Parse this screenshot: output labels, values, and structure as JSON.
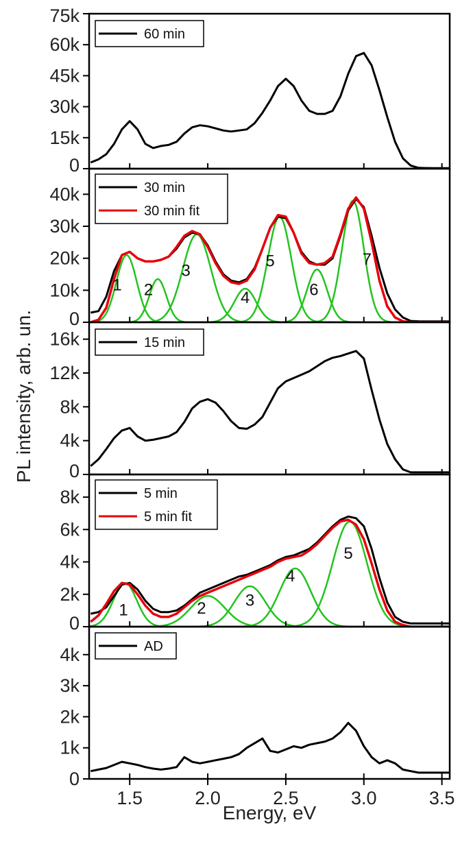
{
  "colors": {
    "data": "#000000",
    "fit": "#e8000b",
    "component": "#22c41e",
    "axis": "#000000"
  },
  "chart_data": {
    "type": "line",
    "xlabel": "Energy, eV",
    "ylabel": "PL intensity, arb. un.",
    "xlim": [
      1.24,
      3.55
    ],
    "xticks": [
      1.5,
      2.0,
      2.5,
      3.0,
      3.5
    ],
    "xtick_labels": [
      "1.5",
      "2.0",
      "2.5",
      "3.0",
      "3.5"
    ],
    "panels": [
      {
        "id": "60min",
        "ylim": [
          0,
          75000
        ],
        "yticks": [
          0,
          15000,
          30000,
          45000,
          60000,
          75000
        ],
        "ytick_labels": [
          "0",
          "15k",
          "30k",
          "45k",
          "60k",
          "75k"
        ],
        "series": [
          {
            "name": "60 min",
            "role": "data",
            "x": [
              1.25,
              1.3,
              1.35,
              1.4,
              1.45,
              1.5,
              1.55,
              1.6,
              1.65,
              1.7,
              1.75,
              1.8,
              1.85,
              1.9,
              1.95,
              2.0,
              2.05,
              2.1,
              2.15,
              2.2,
              2.25,
              2.3,
              2.35,
              2.4,
              2.45,
              2.5,
              2.55,
              2.6,
              2.65,
              2.7,
              2.75,
              2.8,
              2.85,
              2.9,
              2.95,
              3.0,
              3.05,
              3.1,
              3.15,
              3.2,
              3.25,
              3.3,
              3.35,
              3.4,
              3.45,
              3.5,
              3.55
            ],
            "y": [
              3000,
              4500,
              7000,
              12000,
              19000,
              23000,
              19000,
              12000,
              10000,
              11000,
              11500,
              13000,
              17000,
              20000,
              21000,
              20500,
              19500,
              18500,
              18000,
              18500,
              19000,
              22000,
              27000,
              33000,
              40000,
              43500,
              40000,
              33000,
              28000,
              26500,
              26500,
              28000,
              35000,
              46000,
              54500,
              56000,
              50000,
              38000,
              25000,
              13000,
              5000,
              1500,
              400,
              300,
              250,
              250,
              250
            ]
          }
        ]
      },
      {
        "id": "30min",
        "ylim": [
          0,
          48000
        ],
        "yticks": [
          0,
          10000,
          20000,
          30000,
          40000
        ],
        "ytick_labels": [
          "0",
          "10k",
          "20k",
          "30k",
          "40k"
        ],
        "series": [
          {
            "name": "30 min",
            "role": "data",
            "x": [
              1.25,
              1.3,
              1.35,
              1.4,
              1.45,
              1.5,
              1.55,
              1.6,
              1.65,
              1.7,
              1.75,
              1.8,
              1.85,
              1.9,
              1.95,
              2.0,
              2.05,
              2.1,
              2.15,
              2.2,
              2.25,
              2.3,
              2.35,
              2.4,
              2.45,
              2.5,
              2.55,
              2.6,
              2.65,
              2.7,
              2.75,
              2.8,
              2.85,
              2.9,
              2.95,
              3.0,
              3.05,
              3.1,
              3.15,
              3.2,
              3.25,
              3.3,
              3.35,
              3.4,
              3.45,
              3.5,
              3.55
            ],
            "y": [
              3000,
              3500,
              8000,
              16000,
              21000,
              22000,
              20000,
              19000,
              19000,
              19500,
              20500,
              23000,
              26500,
              28000,
              27500,
              24000,
              19000,
              15000,
              13000,
              12500,
              13500,
              17000,
              23000,
              29500,
              33000,
              32500,
              28000,
              22000,
              19000,
              18000,
              18000,
              20000,
              27000,
              35000,
              38500,
              36000,
              27000,
              17000,
              9000,
              4000,
              1500,
              400,
              300,
              250,
              250,
              250,
              250
            ]
          },
          {
            "name": "30 min fit",
            "role": "fit",
            "x": [
              1.25,
              1.3,
              1.35,
              1.4,
              1.45,
              1.5,
              1.55,
              1.6,
              1.65,
              1.7,
              1.75,
              1.8,
              1.85,
              1.9,
              1.95,
              2.0,
              2.05,
              2.1,
              2.15,
              2.2,
              2.25,
              2.3,
              2.35,
              2.4,
              2.45,
              2.5,
              2.55,
              2.6,
              2.65,
              2.7,
              2.75,
              2.8,
              2.85,
              2.9,
              2.95,
              3.0,
              3.05,
              3.1,
              3.15,
              3.2,
              3.25,
              3.3,
              3.35,
              3.4,
              3.45,
              3.5,
              3.55
            ],
            "y": [
              0,
              800,
              4500,
              13500,
              21000,
              22000,
              20000,
              19000,
              19000,
              19500,
              20500,
              23500,
              27000,
              28500,
              27500,
              23500,
              18500,
              14500,
              12500,
              12000,
              13000,
              16500,
              23000,
              29500,
              33500,
              33000,
              28000,
              21500,
              18500,
              18000,
              18500,
              20500,
              27500,
              35500,
              39000,
              35500,
              25000,
              13000,
              5000,
              1500,
              300,
              0,
              0,
              0,
              0,
              0,
              0
            ]
          },
          {
            "name": "peak 1",
            "role": "component",
            "center": 1.48,
            "amp": 21000,
            "sigma": 0.065
          },
          {
            "name": "peak 2",
            "role": "component",
            "center": 1.68,
            "amp": 13500,
            "sigma": 0.055
          },
          {
            "name": "peak 3",
            "role": "component",
            "center": 1.93,
            "amp": 27500,
            "sigma": 0.09
          },
          {
            "name": "peak 4",
            "role": "component",
            "center": 2.24,
            "amp": 10500,
            "sigma": 0.07
          },
          {
            "name": "peak 5",
            "role": "component",
            "center": 2.46,
            "amp": 33000,
            "sigma": 0.075
          },
          {
            "name": "peak 6",
            "role": "component",
            "center": 2.7,
            "amp": 16500,
            "sigma": 0.065
          },
          {
            "name": "peak 7",
            "role": "component",
            "center": 2.93,
            "amp": 38000,
            "sigma": 0.07
          }
        ],
        "peak_labels": [
          {
            "text": "1",
            "x": 1.42,
            "y": 10000
          },
          {
            "text": "2",
            "x": 1.62,
            "y": 8500
          },
          {
            "text": "3",
            "x": 1.86,
            "y": 14500
          },
          {
            "text": "4",
            "x": 2.24,
            "y": 6000
          },
          {
            "text": "5",
            "x": 2.4,
            "y": 17500
          },
          {
            "text": "6",
            "x": 2.68,
            "y": 8500
          },
          {
            "text": "7",
            "x": 3.02,
            "y": 18000
          }
        ]
      },
      {
        "id": "15min",
        "ylim": [
          0,
          18000
        ],
        "yticks": [
          0,
          4000,
          8000,
          12000,
          16000
        ],
        "ytick_labels": [
          "0",
          "4k",
          "8k",
          "12k",
          "16k"
        ],
        "series": [
          {
            "name": "15 min",
            "role": "data",
            "x": [
              1.25,
              1.3,
              1.35,
              1.4,
              1.45,
              1.5,
              1.55,
              1.6,
              1.65,
              1.7,
              1.75,
              1.8,
              1.85,
              1.9,
              1.95,
              2.0,
              2.05,
              2.1,
              2.15,
              2.2,
              2.25,
              2.3,
              2.35,
              2.4,
              2.45,
              2.5,
              2.55,
              2.6,
              2.65,
              2.7,
              2.75,
              2.8,
              2.85,
              2.9,
              2.95,
              3.0,
              3.05,
              3.1,
              3.15,
              3.2,
              3.25,
              3.3,
              3.35,
              3.4,
              3.45,
              3.5,
              3.55
            ],
            "y": [
              1000,
              1800,
              3000,
              4300,
              5200,
              5500,
              4500,
              4000,
              4100,
              4300,
              4500,
              5000,
              6200,
              7800,
              8600,
              8900,
              8500,
              7500,
              6300,
              5500,
              5400,
              5900,
              6800,
              8500,
              10200,
              11000,
              11400,
              11800,
              12200,
              12800,
              13400,
              13800,
              14000,
              14300,
              14600,
              13700,
              10000,
              6500,
              3600,
              1800,
              600,
              250,
              250,
              250,
              250,
              250,
              250
            ]
          }
        ]
      },
      {
        "id": "5min",
        "ylim": [
          0,
          9400
        ],
        "yticks": [
          0,
          2000,
          4000,
          6000,
          8000
        ],
        "ytick_labels": [
          "0",
          "2k",
          "4k",
          "6k",
          "8k"
        ],
        "series": [
          {
            "name": "5 min",
            "role": "data",
            "x": [
              1.25,
              1.3,
              1.35,
              1.4,
              1.45,
              1.5,
              1.55,
              1.6,
              1.65,
              1.7,
              1.75,
              1.8,
              1.85,
              1.9,
              1.95,
              2.0,
              2.05,
              2.1,
              2.15,
              2.2,
              2.25,
              2.3,
              2.35,
              2.4,
              2.45,
              2.5,
              2.55,
              2.6,
              2.65,
              2.7,
              2.75,
              2.8,
              2.85,
              2.9,
              2.95,
              3.0,
              3.05,
              3.1,
              3.15,
              3.2,
              3.25,
              3.3,
              3.35,
              3.4,
              3.45,
              3.5,
              3.55
            ],
            "y": [
              800,
              900,
              1200,
              1900,
              2600,
              2700,
              2300,
              1600,
              1100,
              900,
              900,
              1000,
              1300,
              1700,
              2100,
              2300,
              2500,
              2700,
              2900,
              3100,
              3200,
              3400,
              3600,
              3800,
              4100,
              4300,
              4400,
              4600,
              4800,
              5200,
              5700,
              6200,
              6600,
              6800,
              6700,
              6200,
              4800,
              3000,
              1500,
              600,
              300,
              200,
              200,
              200,
              200,
              200,
              200
            ]
          },
          {
            "name": "5 min fit",
            "role": "fit",
            "x": [
              1.25,
              1.3,
              1.35,
              1.4,
              1.45,
              1.5,
              1.55,
              1.6,
              1.65,
              1.7,
              1.75,
              1.8,
              1.85,
              1.9,
              1.95,
              2.0,
              2.05,
              2.1,
              2.15,
              2.2,
              2.25,
              2.3,
              2.35,
              2.4,
              2.45,
              2.5,
              2.55,
              2.6,
              2.65,
              2.7,
              2.75,
              2.8,
              2.85,
              2.9,
              2.95,
              3.0,
              3.05,
              3.1,
              3.15,
              3.2,
              3.25,
              3.3,
              3.35,
              3.4,
              3.45,
              3.5,
              3.55
            ],
            "y": [
              300,
              700,
              1400,
              2200,
              2700,
              2600,
              2000,
              1300,
              800,
              600,
              600,
              800,
              1200,
              1600,
              1900,
              2100,
              2300,
              2500,
              2700,
              2900,
              3100,
              3300,
              3500,
              3700,
              4000,
              4200,
              4300,
              4400,
              4700,
              5100,
              5600,
              6100,
              6500,
              6600,
              6300,
              5400,
              3900,
              2300,
              1000,
              300,
              100,
              0,
              0,
              0,
              0,
              0,
              0
            ]
          },
          {
            "name": "peak 1",
            "role": "component",
            "center": 1.47,
            "amp": 2700,
            "sigma": 0.075
          },
          {
            "name": "peak 2",
            "role": "component",
            "center": 2.0,
            "amp": 1900,
            "sigma": 0.11
          },
          {
            "name": "peak 3",
            "role": "component",
            "center": 2.27,
            "amp": 2500,
            "sigma": 0.1
          },
          {
            "name": "peak 4",
            "role": "component",
            "center": 2.56,
            "amp": 3600,
            "sigma": 0.1
          },
          {
            "name": "peak 5",
            "role": "component",
            "center": 2.91,
            "amp": 6500,
            "sigma": 0.11
          }
        ],
        "peak_labels": [
          {
            "text": "1",
            "x": 1.46,
            "y": 700
          },
          {
            "text": "2",
            "x": 1.96,
            "y": 800
          },
          {
            "text": "3",
            "x": 2.27,
            "y": 1300
          },
          {
            "text": "4",
            "x": 2.53,
            "y": 2800
          },
          {
            "text": "5",
            "x": 2.9,
            "y": 4200
          }
        ]
      },
      {
        "id": "AD",
        "ylim": [
          0,
          4900
        ],
        "yticks": [
          0,
          1000,
          2000,
          3000,
          4000
        ],
        "ytick_labels": [
          "0",
          "1k",
          "2k",
          "3k",
          "4k"
        ],
        "series": [
          {
            "name": "AD",
            "role": "data",
            "x": [
              1.25,
              1.3,
              1.35,
              1.4,
              1.45,
              1.5,
              1.55,
              1.6,
              1.65,
              1.7,
              1.75,
              1.8,
              1.85,
              1.9,
              1.95,
              2.0,
              2.05,
              2.1,
              2.15,
              2.2,
              2.25,
              2.3,
              2.35,
              2.4,
              2.45,
              2.5,
              2.55,
              2.6,
              2.65,
              2.7,
              2.75,
              2.8,
              2.85,
              2.9,
              2.95,
              3.0,
              3.05,
              3.1,
              3.15,
              3.2,
              3.25,
              3.3,
              3.35,
              3.4,
              3.45,
              3.5,
              3.55
            ],
            "y": [
              250,
              300,
              350,
              450,
              550,
              500,
              450,
              380,
              330,
              300,
              330,
              380,
              700,
              550,
              500,
              550,
              600,
              650,
              700,
              800,
              1000,
              1150,
              1300,
              900,
              850,
              950,
              1050,
              1000,
              1100,
              1150,
              1200,
              1300,
              1500,
              1800,
              1550,
              1050,
              700,
              500,
              600,
              500,
              300,
              250,
              200,
              200,
              200,
              200,
              200
            ]
          }
        ]
      }
    ]
  }
}
